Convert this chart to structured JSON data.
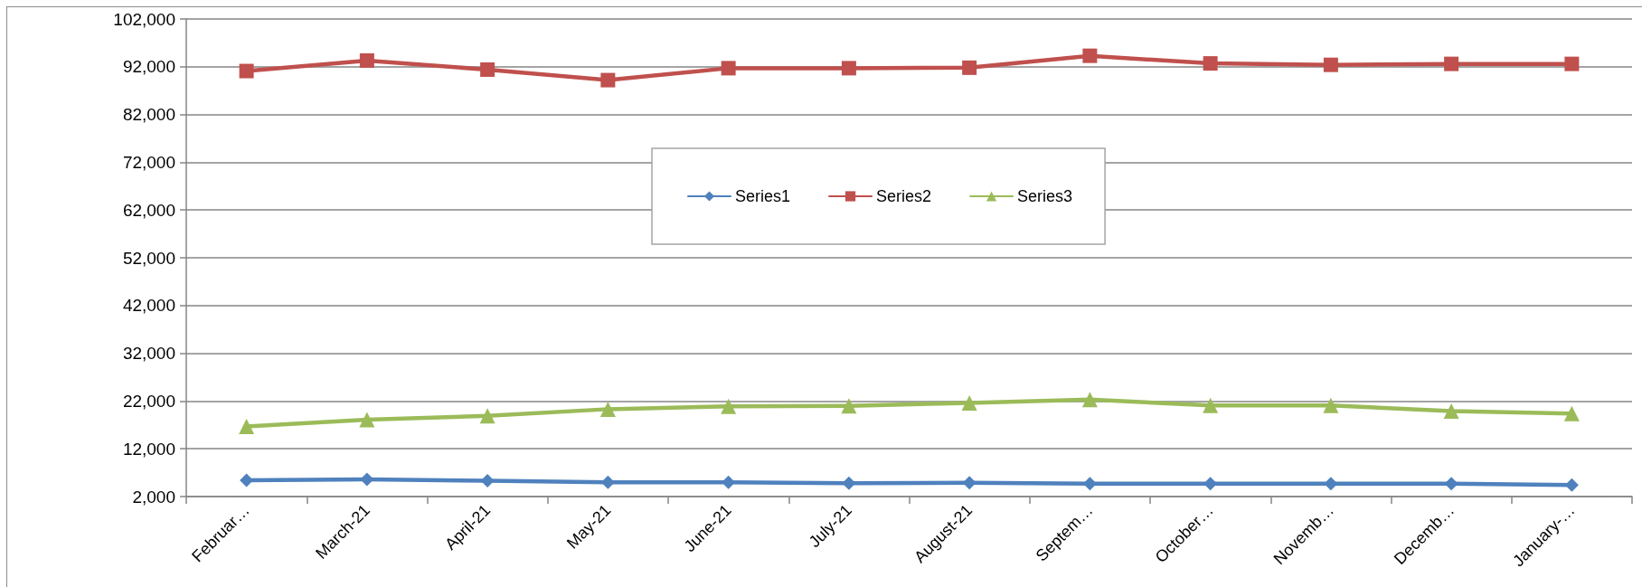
{
  "chart_data": {
    "type": "line",
    "categories": [
      "Februar…",
      "March-21",
      "April-21",
      "May-21",
      "June-21",
      "July-21",
      "August-21",
      "Septem…",
      "October…",
      "Novemb…",
      "Decemb…",
      "January-…"
    ],
    "series": [
      {
        "name": "Series1",
        "color": "#4f81bd",
        "marker": "diamond",
        "values": [
          5400,
          5600,
          5300,
          5000,
          5000,
          4800,
          4900,
          4700,
          4700,
          4700,
          4700,
          4400
        ]
      },
      {
        "name": "Series2",
        "color": "#c0504d",
        "marker": "square",
        "values": [
          91100,
          93300,
          91400,
          89200,
          91700,
          91700,
          91800,
          94300,
          92700,
          92400,
          92600,
          92600
        ]
      },
      {
        "name": "Series3",
        "color": "#9bbb59",
        "marker": "triangle",
        "values": [
          16700,
          18100,
          18900,
          20300,
          20900,
          21000,
          21600,
          22300,
          21100,
          21100,
          19900,
          19400
        ]
      }
    ],
    "ylim": [
      2000,
      102000
    ],
    "yticks": [
      {
        "value": 2000,
        "label": "2,000"
      },
      {
        "value": 12000,
        "label": "12,000"
      },
      {
        "value": 22000,
        "label": "22,000"
      },
      {
        "value": 32000,
        "label": "32,000"
      },
      {
        "value": 42000,
        "label": "42,000"
      },
      {
        "value": 52000,
        "label": "52,000"
      },
      {
        "value": 62000,
        "label": "62,000"
      },
      {
        "value": 72000,
        "label": "72,000"
      },
      {
        "value": 82000,
        "label": "82,000"
      },
      {
        "value": 92000,
        "label": "92,000"
      },
      {
        "value": 102000,
        "label": "102,000"
      }
    ],
    "grid": "y",
    "legend": "top",
    "line_style": "solid"
  }
}
